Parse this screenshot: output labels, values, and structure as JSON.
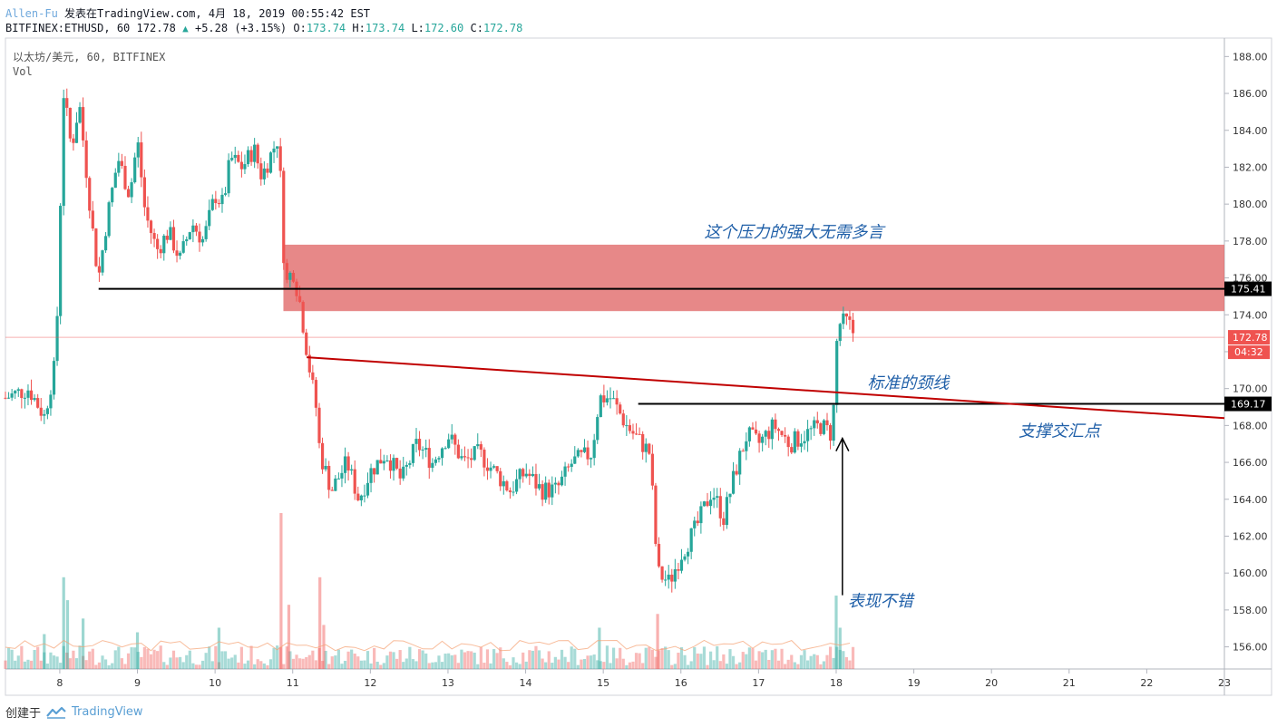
{
  "header": {
    "author": "Allen-Fu",
    "published": "发表在TradingView.com, 4月 18, 2019 00:55:42 EST",
    "symbol": "BITFINEX:ETHUSD, 60",
    "last": "172.78",
    "change": "+5.28 (+3.15%)",
    "o_label": "O:",
    "o_value": "173.74",
    "h_label": "H:",
    "h_value": "173.74",
    "l_label": "L:",
    "l_value": "172.60",
    "c_label": "C:",
    "c_value": "172.78"
  },
  "legend": {
    "title": "以太坊/美元, 60, BITFINEX",
    "vol": "Vol"
  },
  "footer": {
    "created": "创建于",
    "brand": "TradingView"
  },
  "colors": {
    "up": "#26a69a",
    "down": "#ef5350",
    "resistance_zone": "#e06666",
    "trendline": "#c00000",
    "annotation": "#1f5fa8"
  },
  "chart_data": {
    "type": "candlestick",
    "symbol": "BITFINEX:ETHUSD",
    "interval": "60",
    "ylim": [
      154.8,
      189
    ],
    "xlim": [
      7.3,
      23.0
    ],
    "y_ticks": [
      "188.00",
      "186.00",
      "184.00",
      "182.00",
      "180.00",
      "178.00",
      "176.00",
      "174.00",
      "172.00",
      "170.00",
      "168.00",
      "166.00",
      "164.00",
      "162.00",
      "160.00",
      "158.00",
      "156.00"
    ],
    "x_ticks": [
      {
        "day": 8,
        "label": "8"
      },
      {
        "day": 9,
        "label": "9"
      },
      {
        "day": 10,
        "label": "10"
      },
      {
        "day": 11,
        "label": "11"
      },
      {
        "day": 12,
        "label": "12"
      },
      {
        "day": 13,
        "label": "13"
      },
      {
        "day": 14,
        "label": "14"
      },
      {
        "day": 15,
        "label": "15"
      },
      {
        "day": 16,
        "label": "16"
      },
      {
        "day": 17,
        "label": "17"
      },
      {
        "day": 18,
        "label": "18"
      },
      {
        "day": 19,
        "label": "19"
      },
      {
        "day": 20,
        "label": "20"
      },
      {
        "day": 21,
        "label": "21"
      },
      {
        "day": 22,
        "label": "22"
      },
      {
        "day": 23,
        "label": "23"
      }
    ],
    "price_path": [
      [
        7.3,
        169.5
      ],
      [
        7.6,
        170.0
      ],
      [
        7.8,
        168.5
      ],
      [
        7.95,
        171.5
      ],
      [
        8.0,
        179.0
      ],
      [
        8.05,
        186.0
      ],
      [
        8.15,
        183.0
      ],
      [
        8.25,
        185.5
      ],
      [
        8.35,
        181.5
      ],
      [
        8.45,
        177.5
      ],
      [
        8.5,
        176.0
      ],
      [
        8.6,
        179.0
      ],
      [
        8.75,
        182.5
      ],
      [
        8.9,
        180.5
      ],
      [
        9.0,
        183.5
      ],
      [
        9.1,
        179.5
      ],
      [
        9.25,
        177.5
      ],
      [
        9.4,
        178.5
      ],
      [
        9.55,
        177.0
      ],
      [
        9.7,
        179.0
      ],
      [
        9.85,
        178.0
      ],
      [
        10.0,
        180.5
      ],
      [
        10.1,
        180.0
      ],
      [
        10.2,
        182.5
      ],
      [
        10.35,
        182.0
      ],
      [
        10.5,
        183.0
      ],
      [
        10.6,
        181.5
      ],
      [
        10.7,
        182.5
      ],
      [
        10.8,
        183.5
      ],
      [
        10.85,
        181.0
      ],
      [
        10.9,
        175.5
      ],
      [
        11.0,
        176.5
      ],
      [
        11.1,
        174.5
      ],
      [
        11.2,
        171.5
      ],
      [
        11.3,
        169.0
      ],
      [
        11.35,
        166.5
      ],
      [
        11.5,
        164.5
      ],
      [
        11.7,
        166.0
      ],
      [
        11.85,
        164.0
      ],
      [
        12.0,
        165.5
      ],
      [
        12.2,
        166.5
      ],
      [
        12.4,
        165.0
      ],
      [
        12.6,
        167.0
      ],
      [
        12.8,
        166.0
      ],
      [
        13.0,
        167.5
      ],
      [
        13.2,
        166.0
      ],
      [
        13.4,
        166.5
      ],
      [
        13.6,
        165.5
      ],
      [
        13.8,
        164.5
      ],
      [
        14.0,
        165.5
      ],
      [
        14.2,
        164.5
      ],
      [
        14.4,
        164.5
      ],
      [
        14.6,
        166.0
      ],
      [
        14.85,
        166.5
      ],
      [
        14.95,
        169.5
      ],
      [
        15.1,
        169.5
      ],
      [
        15.3,
        168.0
      ],
      [
        15.5,
        167.0
      ],
      [
        15.6,
        166.5
      ],
      [
        15.7,
        160.0
      ],
      [
        15.85,
        159.5
      ],
      [
        16.0,
        161.0
      ],
      [
        16.2,
        162.5
      ],
      [
        16.4,
        164.5
      ],
      [
        16.55,
        163.0
      ],
      [
        16.7,
        165.5
      ],
      [
        16.85,
        167.5
      ],
      [
        17.0,
        167.0
      ],
      [
        17.2,
        168.0
      ],
      [
        17.4,
        167.0
      ],
      [
        17.6,
        167.5
      ],
      [
        17.8,
        168.0
      ],
      [
        17.95,
        167.5
      ],
      [
        18.02,
        173.5
      ],
      [
        18.15,
        173.6
      ],
      [
        18.25,
        172.78
      ]
    ],
    "volume_scale_max": 100,
    "spike_volumes": [
      {
        "day": 7.8,
        "value": 38
      },
      {
        "day": 8.05,
        "value": 100
      },
      {
        "day": 8.1,
        "value": 75
      },
      {
        "day": 8.3,
        "value": 55
      },
      {
        "day": 9.0,
        "value": 40
      },
      {
        "day": 10.05,
        "value": 45
      },
      {
        "day": 10.85,
        "value": 170
      },
      {
        "day": 10.95,
        "value": 70
      },
      {
        "day": 11.35,
        "value": 100
      },
      {
        "day": 11.4,
        "value": 48
      },
      {
        "day": 14.95,
        "value": 45
      },
      {
        "day": 15.7,
        "value": 60
      },
      {
        "day": 18.0,
        "value": 80
      },
      {
        "day": 18.05,
        "value": 45
      }
    ],
    "resistance_zone": {
      "y_low": 174.2,
      "y_high": 177.8,
      "x_start": 10.88,
      "x_end": 23.0
    },
    "hlines": [
      {
        "name": "resistance-line",
        "y": 175.41,
        "x_start": 8.5,
        "label": "175.41"
      },
      {
        "name": "support-line",
        "y": 169.17,
        "x_start": 15.45,
        "label": "169.17"
      }
    ],
    "trendline": {
      "x1": 11.18,
      "y1": 171.7,
      "x2": 23.0,
      "y2": 168.4
    },
    "last_price": {
      "y": 172.78,
      "label": "172.78",
      "countdown": "04:32"
    },
    "annotations": [
      {
        "name": "pressure-note",
        "text": "这个压力的强大无需多言",
        "x": 16.3,
        "y": 178.2
      },
      {
        "name": "neckline-note",
        "text": "标准的颈线",
        "x": 18.4,
        "y": 170.0
      },
      {
        "name": "support-confluence-note",
        "text": "支撑交汇点",
        "x": 20.35,
        "y": 167.4
      },
      {
        "name": "good-performance-note",
        "text": "表现不错",
        "x": 18.15,
        "y": 158.2
      }
    ],
    "arrow": {
      "x": 18.08,
      "y_from": 158.8,
      "y_to": 167.3
    }
  }
}
